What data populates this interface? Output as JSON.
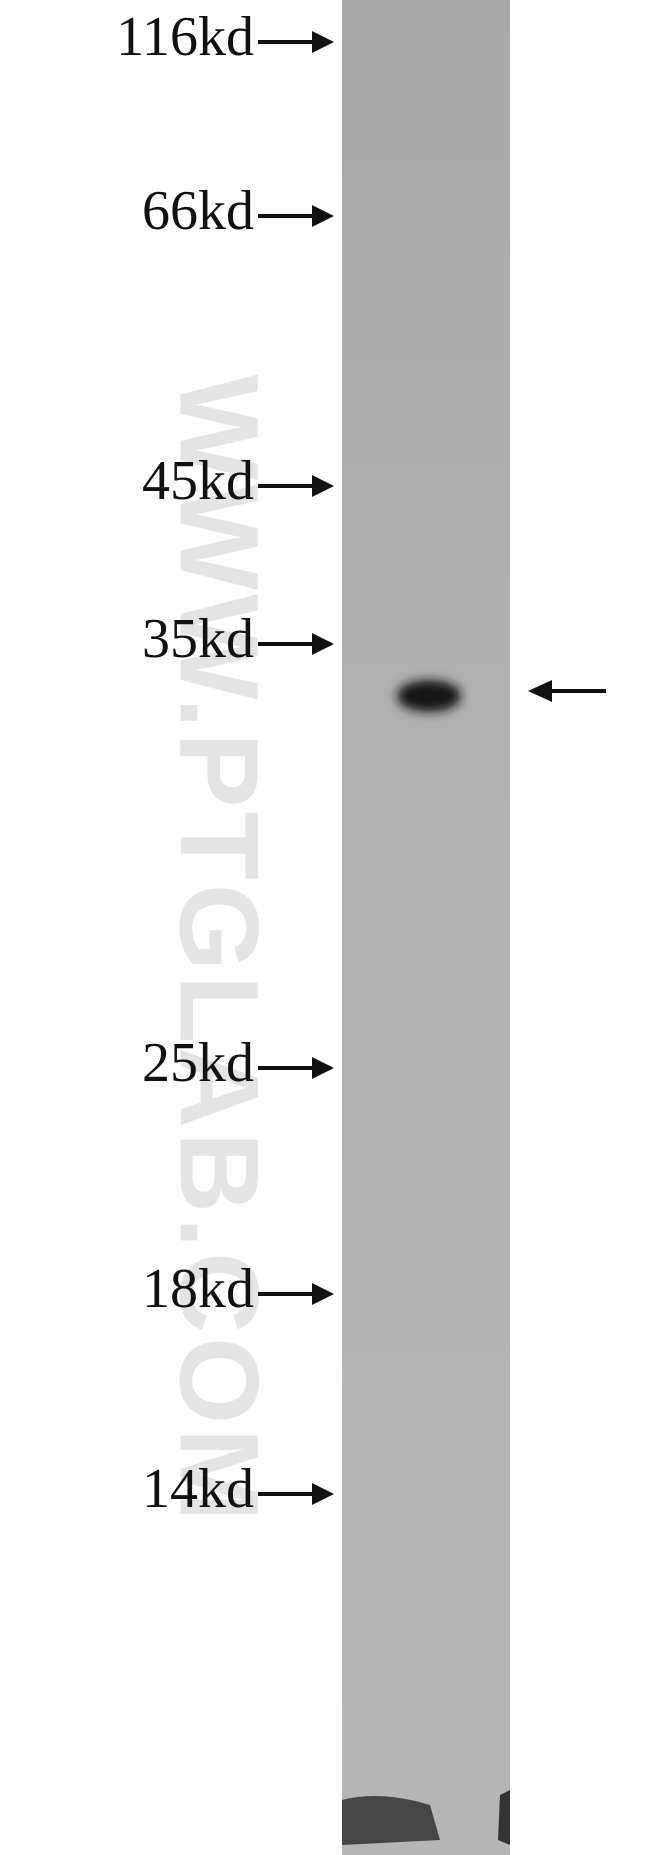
{
  "markers": [
    "116kd",
    "66kd",
    "45kd",
    "35kd",
    "25kd",
    "18kd",
    "14kd"
  ],
  "watermark": "WWW.PTGLAB.COM"
}
